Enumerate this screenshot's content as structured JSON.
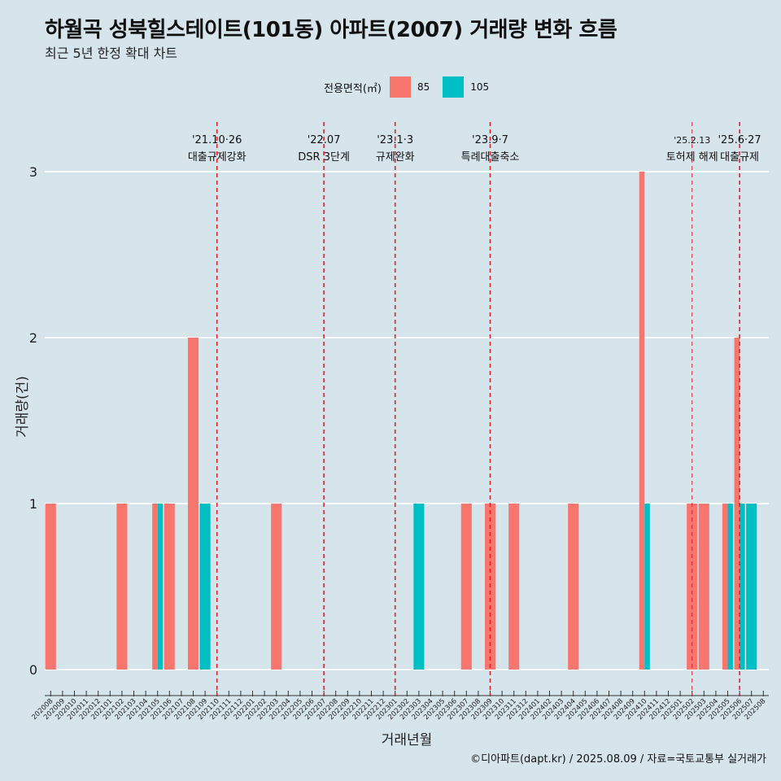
{
  "title": "하월곡 성북힐스테이트(101동) 아파트(2007) 거래량 변화 흐름",
  "subtitle": "최근 5년 한정 확대 차트",
  "caption": "©디아파트(dapt.kr) / 2025.08.09 / 자료=국토교통부 실거래가",
  "colors": {
    "85": "#f8766d",
    "105": "#00bfc4",
    "vline": "#e8202a",
    "grid": "#ffffff",
    "background": "#d6e4ec"
  },
  "chart_data": {
    "type": "bar",
    "xlabel": "거래년월",
    "ylabel": "거래량(건)",
    "ylim": [
      0,
      3
    ],
    "yticks": [
      0,
      1,
      2,
      3
    ],
    "legend": {
      "title": "전용면적(㎡)",
      "position": "top"
    },
    "categories": [
      "202008",
      "202009",
      "202010",
      "202011",
      "202012",
      "202101",
      "202102",
      "202103",
      "202104",
      "202105",
      "202106",
      "202107",
      "202108",
      "202109",
      "202110",
      "202111",
      "202112",
      "202201",
      "202202",
      "202203",
      "202204",
      "202205",
      "202206",
      "202207",
      "202208",
      "202209",
      "202210",
      "202211",
      "202212",
      "202301",
      "202302",
      "202303",
      "202304",
      "202305",
      "202306",
      "202307",
      "202308",
      "202309",
      "202310",
      "202311",
      "202312",
      "202401",
      "202402",
      "202403",
      "202404",
      "202405",
      "202406",
      "202407",
      "202408",
      "202409",
      "202410",
      "202411",
      "202412",
      "202501",
      "202502",
      "202503",
      "202504",
      "202505",
      "202506",
      "202507",
      "202508"
    ],
    "series": [
      {
        "name": "85",
        "values": [
          1,
          0,
          0,
          0,
          0,
          0,
          1,
          0,
          0,
          1,
          1,
          0,
          2,
          0,
          0,
          0,
          0,
          0,
          0,
          1,
          0,
          0,
          0,
          0,
          0,
          0,
          0,
          0,
          0,
          0,
          0,
          0,
          0,
          0,
          0,
          1,
          0,
          1,
          0,
          1,
          0,
          0,
          0,
          0,
          1,
          0,
          0,
          0,
          0,
          0,
          3,
          0,
          0,
          0,
          1,
          1,
          0,
          1,
          2,
          0,
          0
        ]
      },
      {
        "name": "105",
        "values": [
          0,
          0,
          0,
          0,
          0,
          0,
          0,
          0,
          0,
          1,
          0,
          0,
          0,
          1,
          0,
          0,
          0,
          0,
          0,
          0,
          0,
          0,
          0,
          0,
          0,
          0,
          0,
          0,
          0,
          0,
          0,
          1,
          0,
          0,
          0,
          0,
          0,
          0,
          0,
          0,
          0,
          0,
          0,
          0,
          0,
          0,
          0,
          0,
          0,
          0,
          1,
          0,
          0,
          0,
          0,
          0,
          0,
          1,
          1,
          1,
          0
        ]
      }
    ],
    "annotations": [
      {
        "month": "202110",
        "date": "'21.10·26",
        "label": "대출규제강화"
      },
      {
        "month": "202207",
        "date": "'22.07",
        "label": "DSR 3단계"
      },
      {
        "month": "202301",
        "date": "'23.1·3",
        "label": "규제완화"
      },
      {
        "month": "202309",
        "date": "'23.9·7",
        "label": "특례대출축소"
      },
      {
        "month": "202502",
        "date": "'25.2.13",
        "label": "토허제 해제"
      },
      {
        "month": "202506",
        "date": "'25.6·27",
        "label": "대출규제"
      }
    ]
  }
}
